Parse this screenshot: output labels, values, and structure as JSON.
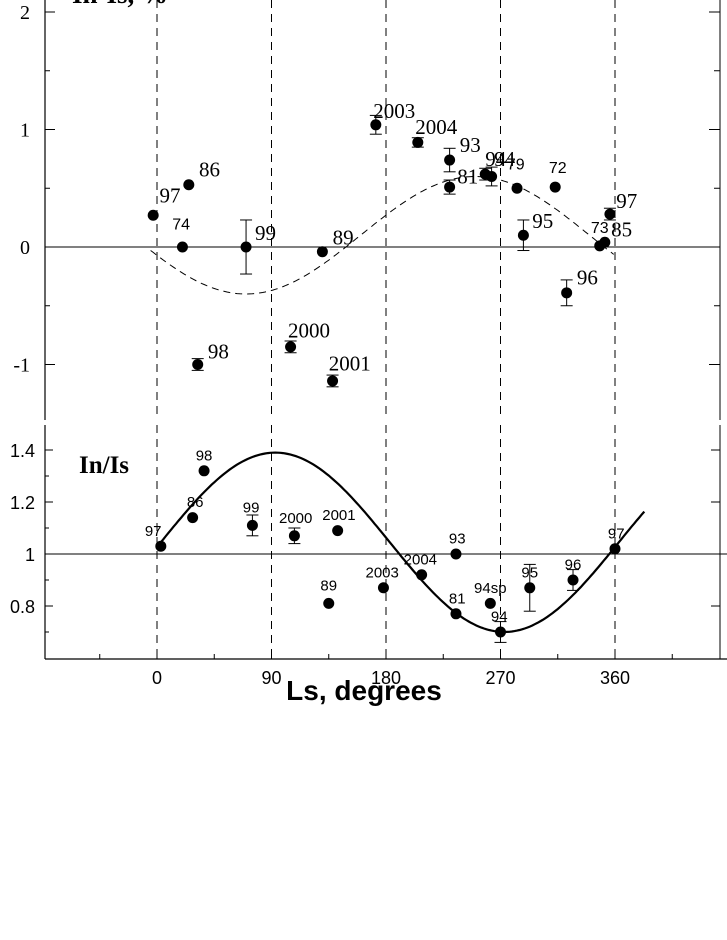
{
  "xaxis": {
    "label": "Ls, degrees",
    "ticks": [
      0,
      90,
      180,
      270,
      360
    ],
    "tick_labels": [
      "0",
      "90",
      "180",
      "270",
      "360"
    ]
  },
  "chart_data": [
    {
      "type": "scatter",
      "title": "In-Is, %",
      "xlabel": "Ls, degrees",
      "ylabel": "",
      "xlim": [
        -90,
        450
      ],
      "ylim": [
        -1.5,
        2
      ],
      "yticks": [
        2,
        1,
        0,
        -1
      ],
      "ytick_labels": [
        "2",
        "1",
        "0",
        "-1"
      ],
      "reference_lines": {
        "horizontal": 0,
        "vertical": [
          0,
          90,
          180,
          270,
          360
        ]
      },
      "curve": {
        "style": "dashed",
        "kind": "sinusoid",
        "amplitude": 0.5,
        "center": 0.1,
        "min_at": 70,
        "max_at": 250,
        "x_range": [
          -5,
          360
        ]
      },
      "points": [
        {
          "label": "97",
          "x": -3,
          "y": 0.27
        },
        {
          "label": "74",
          "x": 20,
          "y": 0.0
        },
        {
          "label": "86",
          "x": 25,
          "y": 0.53
        },
        {
          "label": "98",
          "x": 32,
          "y": -1.0,
          "err": 0.05
        },
        {
          "label": "99",
          "x": 70,
          "y": 0.0,
          "err": 0.23
        },
        {
          "label": "2000",
          "x": 105,
          "y": -0.85,
          "err": 0.05
        },
        {
          "label": "89",
          "x": 130,
          "y": -0.04
        },
        {
          "label": "2001",
          "x": 138,
          "y": -1.14,
          "err": 0.05
        },
        {
          "label": "2003",
          "x": 172,
          "y": 1.04,
          "err": 0.08
        },
        {
          "label": "2004",
          "x": 205,
          "y": 0.89,
          "err": 0.04
        },
        {
          "label": "93",
          "x": 230,
          "y": 0.74,
          "err": 0.1
        },
        {
          "label": "81",
          "x": 230,
          "y": 0.51,
          "err": 0.06
        },
        {
          "label": "94",
          "x": 258,
          "y": 0.62,
          "err": 0.05
        },
        {
          "label": "94",
          "x": 263,
          "y": 0.6,
          "err": 0.08
        },
        {
          "label": "79",
          "x": 283,
          "y": 0.5
        },
        {
          "label": "72",
          "x": 313,
          "y": 0.51
        },
        {
          "label": "95",
          "x": 288,
          "y": 0.1,
          "err": 0.13
        },
        {
          "label": "96",
          "x": 322,
          "y": -0.39,
          "err": 0.11
        },
        {
          "label": "73",
          "x": 348,
          "y": 0.01
        },
        {
          "label": "85",
          "x": 352,
          "y": 0.04
        },
        {
          "label": "97",
          "x": 356,
          "y": 0.28,
          "err": 0.05
        }
      ],
      "point_labels": [
        {
          "text": "97",
          "x": 2,
          "y": 0.38,
          "size": "large"
        },
        {
          "text": "74",
          "x": 12,
          "y": 0.15,
          "size": "small"
        },
        {
          "text": "86",
          "x": 33,
          "y": 0.6,
          "size": "large"
        },
        {
          "text": "98",
          "x": 40,
          "y": -0.95,
          "size": "large"
        },
        {
          "text": "99",
          "x": 77,
          "y": 0.06,
          "size": "large"
        },
        {
          "text": "2000",
          "x": 103,
          "y": -0.77,
          "size": "large"
        },
        {
          "text": "89",
          "x": 138,
          "y": 0.02,
          "size": "large"
        },
        {
          "text": "2001",
          "x": 135,
          "y": -1.05,
          "size": "large"
        },
        {
          "text": "2003",
          "x": 170,
          "y": 1.1,
          "size": "large"
        },
        {
          "text": "2004",
          "x": 203,
          "y": 0.96,
          "size": "large"
        },
        {
          "text": "93",
          "x": 238,
          "y": 0.81,
          "size": "large"
        },
        {
          "text": "81",
          "x": 236,
          "y": 0.54,
          "size": "large"
        },
        {
          "text": "94",
          "x": 258,
          "y": 0.69,
          "size": "large"
        },
        {
          "text": "94",
          "x": 265,
          "y": 0.69,
          "size": "large"
        },
        {
          "text": "79",
          "x": 275,
          "y": 0.66,
          "size": "small"
        },
        {
          "text": "72",
          "x": 308,
          "y": 0.63,
          "size": "small"
        },
        {
          "text": "95",
          "x": 295,
          "y": 0.16,
          "size": "large"
        },
        {
          "text": "96",
          "x": 330,
          "y": -0.32,
          "size": "large"
        },
        {
          "text": "73",
          "x": 341,
          "y": 0.12,
          "size": "small"
        },
        {
          "text": "85",
          "x": 357,
          "y": 0.09,
          "size": "large"
        },
        {
          "text": "97",
          "x": 361,
          "y": 0.33,
          "size": "large"
        }
      ]
    },
    {
      "type": "scatter",
      "title": "In/Is",
      "xlabel": "Ls, degrees",
      "ylabel": "",
      "xlim": [
        -90,
        450
      ],
      "ylim": [
        0.62,
        1.5
      ],
      "yticks": [
        1.4,
        1.2,
        1,
        0.8
      ],
      "ytick_labels": [
        "1.4",
        "1.2",
        "1",
        "0.8"
      ],
      "reference_lines": {
        "horizontal": 1,
        "vertical": [
          0,
          90,
          180,
          270,
          360
        ]
      },
      "curve": {
        "style": "solid",
        "kind": "sinusoid",
        "amplitude": 0.345,
        "center": 1.045,
        "max_at": 93,
        "min_at": 273,
        "x_range": [
          3,
          383
        ]
      },
      "points": [
        {
          "label": "97",
          "x": 3,
          "y": 1.03
        },
        {
          "label": "86",
          "x": 28,
          "y": 1.14
        },
        {
          "label": "98",
          "x": 37,
          "y": 1.32
        },
        {
          "label": "99",
          "x": 75,
          "y": 1.11,
          "err": 0.04
        },
        {
          "label": "2000",
          "x": 108,
          "y": 1.07,
          "err": 0.03
        },
        {
          "label": "89",
          "x": 135,
          "y": 0.81
        },
        {
          "label": "2001",
          "x": 142,
          "y": 1.09
        },
        {
          "label": "2003",
          "x": 178,
          "y": 0.87
        },
        {
          "label": "2004",
          "x": 208,
          "y": 0.92
        },
        {
          "label": "93",
          "x": 235,
          "y": 1.0
        },
        {
          "label": "81",
          "x": 235,
          "y": 0.77
        },
        {
          "label": "94sp",
          "x": 262,
          "y": 0.81
        },
        {
          "label": "94",
          "x": 270,
          "y": 0.7,
          "err": 0.04
        },
        {
          "label": "95",
          "x": 293,
          "y": 0.87,
          "err": 0.09
        },
        {
          "label": "96",
          "x": 327,
          "y": 0.9,
          "err": 0.04
        },
        {
          "label": "97",
          "x": 360,
          "y": 1.02
        }
      ],
      "point_labels": [
        {
          "text": "97",
          "x": -3,
          "y": 1.07
        },
        {
          "text": "86",
          "x": 30,
          "y": 1.18
        },
        {
          "text": "98",
          "x": 37,
          "y": 1.36
        },
        {
          "text": "99",
          "x": 74,
          "y": 1.16
        },
        {
          "text": "2000",
          "x": 109,
          "y": 1.12
        },
        {
          "text": "89",
          "x": 135,
          "y": 0.86
        },
        {
          "text": "2001",
          "x": 143,
          "y": 1.13
        },
        {
          "text": "2003",
          "x": 177,
          "y": 0.91
        },
        {
          "text": "2004",
          "x": 207,
          "y": 0.96
        },
        {
          "text": "93",
          "x": 236,
          "y": 1.04
        },
        {
          "text": "81",
          "x": 236,
          "y": 0.81
        },
        {
          "text": "94sp",
          "x": 262,
          "y": 0.85
        },
        {
          "text": "94",
          "x": 269,
          "y": 0.74
        },
        {
          "text": "95",
          "x": 293,
          "y": 0.91
        },
        {
          "text": "96",
          "x": 327,
          "y": 0.94
        },
        {
          "text": "97",
          "x": 361,
          "y": 1.06
        }
      ]
    }
  ]
}
